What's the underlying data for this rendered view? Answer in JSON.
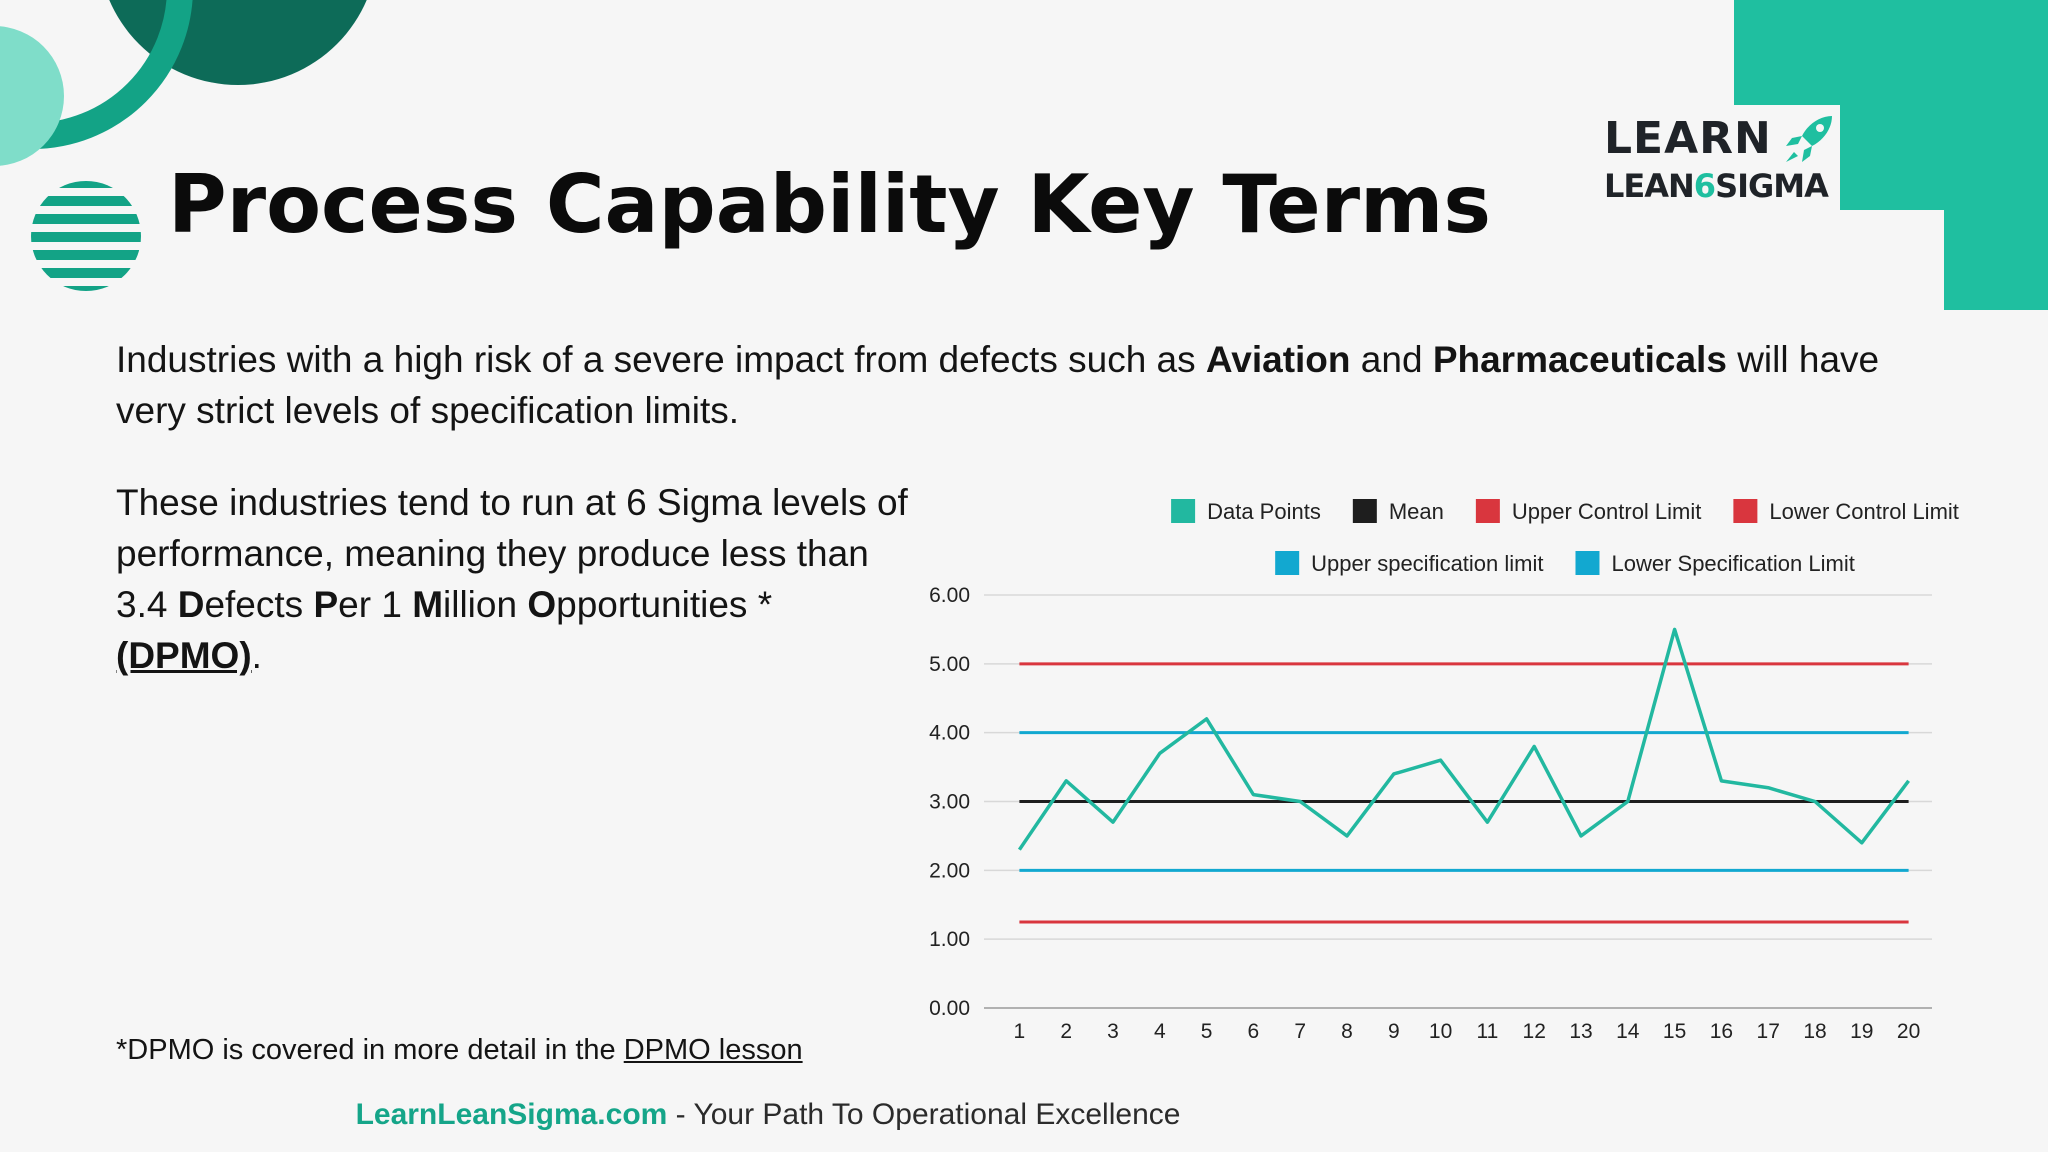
{
  "page": {
    "title": "Process Capability Key Terms",
    "intro": {
      "part1": "Industries with a high risk of a severe impact from defects such as ",
      "bold1": "Aviation",
      "part2": " and ",
      "bold2": "Pharmaceuticals",
      "part3": " will have very strict levels of specification limits."
    },
    "paragraph": {
      "part1": "These industries tend to run at 6 Sigma levels of performance, meaning they produce less than 3.4 ",
      "d": "D",
      "efects": "efects ",
      "p": "P",
      "er": "er 1 ",
      "m": "M",
      "illion": "illion ",
      "o": "O",
      "pportunities": "pportunities *",
      "dpmo": "(DPMO)",
      "end": "."
    },
    "footnote": {
      "text": "*DPMO is covered in more detail in the ",
      "link": "DPMO lesson"
    },
    "brand_footer": {
      "site": "LearnLeanSigma.com",
      "tagline": " - Your Path To Operational Excellence"
    },
    "logo": {
      "line1": "LEARN",
      "line2_a": "LEAN",
      "line2_six": "6",
      "line2_b": "SIGMA",
      "icon": "rocket-icon"
    },
    "colors": {
      "teal_dark": "#0d6b58",
      "teal": "#13a386",
      "teal_light": "#7fddc9",
      "accent": "#1fbfa0"
    }
  },
  "chart_data": {
    "type": "line",
    "x": [
      1,
      2,
      3,
      4,
      5,
      6,
      7,
      8,
      9,
      10,
      11,
      12,
      13,
      14,
      15,
      16,
      17,
      18,
      19,
      20
    ],
    "x_tick_labels": [
      "1",
      "2",
      "3",
      "4",
      "5",
      "6",
      "7",
      "8",
      "9",
      "10",
      "11",
      "12",
      "13",
      "14",
      "15",
      "16",
      "17",
      "18",
      "19",
      "20"
    ],
    "y_tick_labels": [
      "0.00",
      "1.00",
      "2.00",
      "3.00",
      "4.00",
      "5.00",
      "6.00"
    ],
    "ylim": [
      0,
      6
    ],
    "grid": true,
    "legend_placement": "top",
    "series": [
      {
        "name": "Data Points",
        "color": "#22b8a0",
        "values": [
          2.3,
          3.3,
          2.7,
          3.7,
          4.2,
          3.1,
          3.0,
          2.5,
          3.4,
          3.6,
          2.7,
          3.8,
          2.5,
          3.0,
          5.5,
          3.3,
          3.2,
          3.0,
          2.4,
          3.3
        ]
      },
      {
        "name": "Mean",
        "color": "#1e1e1e",
        "values": [
          3,
          3,
          3,
          3,
          3,
          3,
          3,
          3,
          3,
          3,
          3,
          3,
          3,
          3,
          3,
          3,
          3,
          3,
          3,
          3
        ]
      },
      {
        "name": "Upper Control Limit",
        "color": "#d9363e",
        "values": [
          5,
          5,
          5,
          5,
          5,
          5,
          5,
          5,
          5,
          5,
          5,
          5,
          5,
          5,
          5,
          5,
          5,
          5,
          5,
          5
        ]
      },
      {
        "name": "Lower Control Limit",
        "color": "#d9363e",
        "values": [
          1.25,
          1.25,
          1.25,
          1.25,
          1.25,
          1.25,
          1.25,
          1.25,
          1.25,
          1.25,
          1.25,
          1.25,
          1.25,
          1.25,
          1.25,
          1.25,
          1.25,
          1.25,
          1.25,
          1.25
        ]
      },
      {
        "name": "Upper specification limit",
        "color": "#12a8d0",
        "values": [
          4,
          4,
          4,
          4,
          4,
          4,
          4,
          4,
          4,
          4,
          4,
          4,
          4,
          4,
          4,
          4,
          4,
          4,
          4,
          4
        ]
      },
      {
        "name": "Lower Specification Limit",
        "color": "#12a8d0",
        "values": [
          2,
          2,
          2,
          2,
          2,
          2,
          2,
          2,
          2,
          2,
          2,
          2,
          2,
          2,
          2,
          2,
          2,
          2,
          2,
          2
        ]
      }
    ]
  }
}
